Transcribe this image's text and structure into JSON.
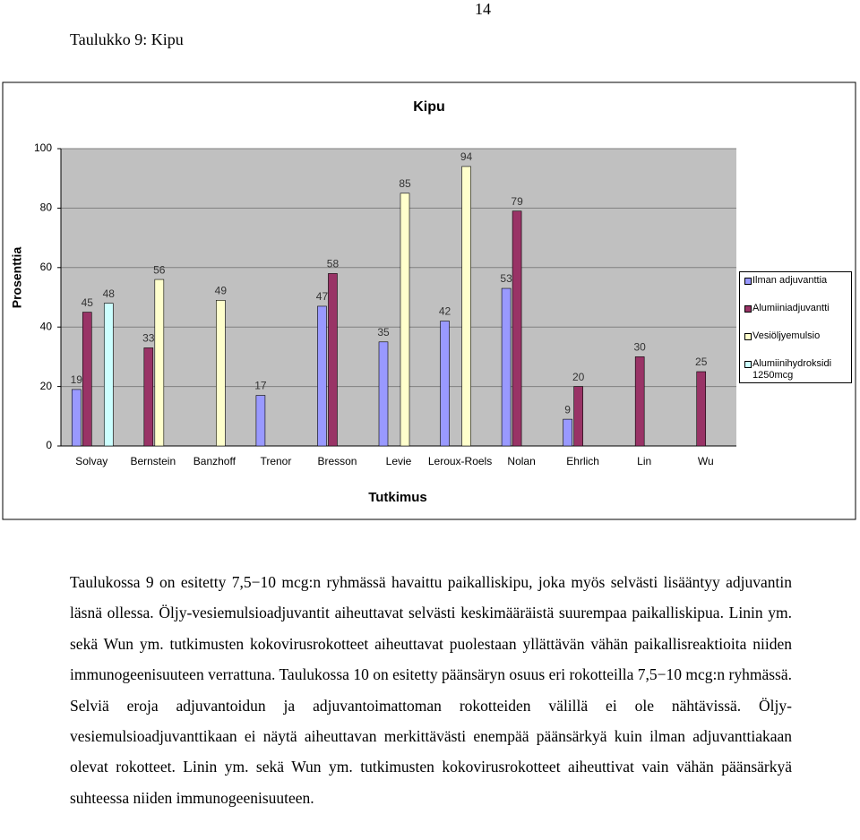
{
  "page_number": "14",
  "caption": "Taulukko 9: Kipu",
  "chart_data": {
    "type": "bar",
    "title": "Kipu",
    "x_label": "Tutkimus",
    "y_label": "Prosenttia",
    "categories": [
      "Solvay",
      "Bernstein",
      "Banzhoff",
      "Trenor",
      "Bresson",
      "Levie",
      "Leroux-Roels",
      "Nolan",
      "Ehrlich",
      "Lin",
      "Wu"
    ],
    "series": [
      {
        "name": "Ilman adjuvanttia",
        "color": "#9999ff",
        "values": [
          19,
          null,
          null,
          17,
          47,
          35,
          42,
          53,
          9,
          null,
          null
        ]
      },
      {
        "name": "Alumiiniadjuvantti",
        "color": "#993366",
        "values": [
          45,
          33,
          null,
          null,
          58,
          null,
          null,
          79,
          20,
          30,
          25
        ]
      },
      {
        "name": "Vesiöljyemulsio",
        "color": "#ffffcc",
        "values": [
          null,
          56,
          49,
          null,
          null,
          85,
          94,
          null,
          null,
          null,
          null
        ]
      },
      {
        "name": "Alumiinihydroksidi 1250mcg",
        "color": "#ccffff",
        "values": [
          48,
          null,
          null,
          null,
          null,
          null,
          null,
          null,
          null,
          null,
          null
        ]
      }
    ],
    "ylim": [
      0,
      100
    ],
    "yticks": [
      0,
      20,
      40,
      60,
      80,
      100
    ],
    "grid": true,
    "legend": "right"
  },
  "paragraph": "Taulukossa 9 on esitetty 7,5−10 mcg:n ryhmässä havaittu paikalliskipu, joka myös selvästi lisääntyy adjuvantin läsnä ollessa. Öljy-vesiemulsioadjuvantit aiheuttavat selvästi keskimääräistä suurempaa paikalliskipua. Linin ym. sekä Wun ym. tutkimusten kokovirusrokotteet aiheuttavat puolestaan yllättävän vähän paikallisreaktioita niiden immunogeenisuuteen verrattuna. Taulukossa 10 on esitetty päänsäryn osuus eri rokotteilla 7,5−10 mcg:n ryhmässä. Selviä eroja adjuvantoidun ja adjuvantoimattoman rokotteiden välillä ei ole nähtävissä. Öljy-vesiemulsioadjuvanttikaan ei näytä aiheuttavan merkittävästi enempää päänsärkyä kuin ilman adjuvanttiakaan olevat rokotteet. Linin ym. sekä Wun ym. tutkimusten kokovirusrokotteet aiheuttivat vain vähän päänsärkyä suhteessa niiden immunogeenisuuteen."
}
